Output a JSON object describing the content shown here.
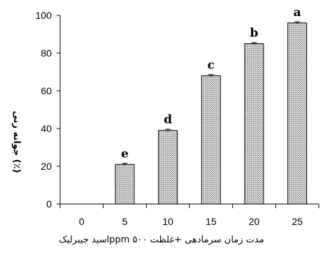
{
  "chart_data": {
    "type": "bar",
    "categories": [
      "0",
      "5",
      "10",
      "15",
      "20",
      "25"
    ],
    "values": [
      0,
      21,
      39,
      68,
      85,
      96
    ],
    "errors": [
      0,
      0.6,
      0.6,
      0.6,
      0.6,
      0.6
    ],
    "bar_letters": [
      "",
      "e",
      "d",
      "c",
      "b",
      "a"
    ],
    "title": "",
    "xlabel": "مدت زمان سرمادهی +غلظت ۵۰۰ ppmاسید جیبرلیک",
    "ylabel": "جوانه زنی (٪)",
    "ylim": [
      0,
      100
    ],
    "yticks": [
      0,
      20,
      40,
      60,
      80,
      100
    ],
    "grid": false,
    "legend": "none",
    "bar_fill": "#bdbdbd",
    "bar_pattern": "cross-hatch"
  }
}
